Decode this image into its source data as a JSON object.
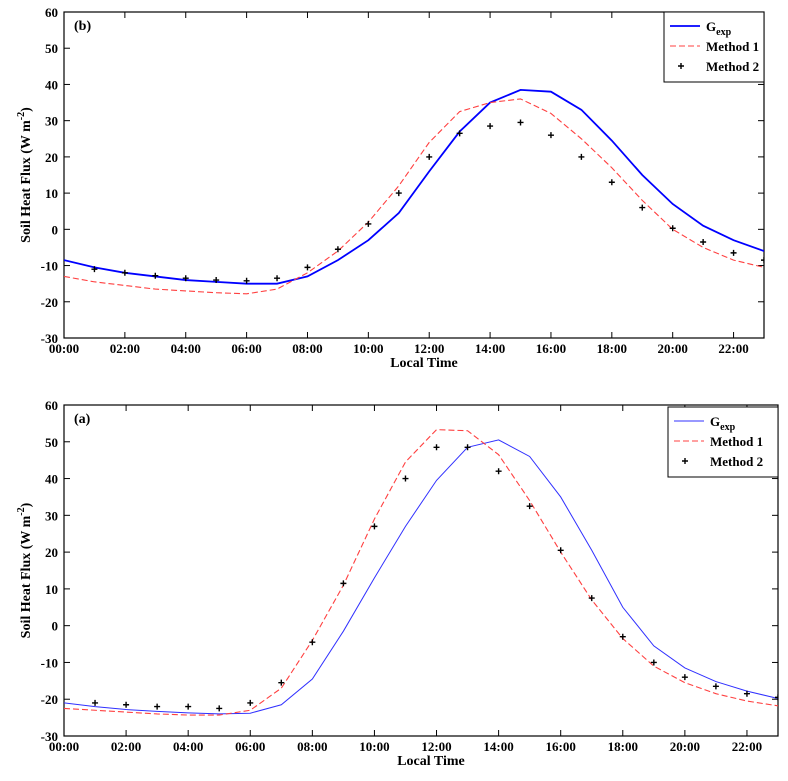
{
  "chart_data": [
    {
      "type": "line",
      "panel_label": "(b)",
      "xlabel": "Local Time",
      "ylabel": "Soil Heat Flux (W m",
      "ylabel_sup": "-2",
      "ylabel_close": ")",
      "xlim": [
        0,
        23
      ],
      "ylim": [
        -30,
        60
      ],
      "yticks": [
        -30,
        -20,
        -10,
        0,
        10,
        20,
        30,
        40,
        50,
        60
      ],
      "xticks": [
        0,
        2,
        4,
        6,
        8,
        10,
        12,
        14,
        16,
        18,
        20,
        22
      ],
      "xtick_labels": [
        "00:00",
        "02:00",
        "04:00",
        "06:00",
        "08:00",
        "10:00",
        "12:00",
        "14:00",
        "16:00",
        "18:00",
        "20:00",
        "22:00"
      ],
      "legend_position": "top-right",
      "series": [
        {
          "name": "G",
          "name_sub": "exp",
          "style": "solid-thick",
          "color": "#0000ff",
          "x": [
            0,
            1,
            2,
            3,
            4,
            5,
            6,
            7,
            8,
            9,
            10,
            11,
            12,
            13,
            14,
            15,
            16,
            17,
            18,
            19,
            20,
            21,
            22,
            23
          ],
          "values": [
            -8.5,
            -10.5,
            -12,
            -13,
            -14,
            -14.5,
            -15,
            -15,
            -13,
            -8.5,
            -3,
            4.5,
            16,
            27,
            35,
            38.5,
            38,
            33,
            24.5,
            15,
            7,
            1,
            -3,
            -6
          ]
        },
        {
          "name": "Method 1",
          "style": "dashed",
          "color": "#ff4040",
          "x": [
            0,
            1,
            2,
            3,
            4,
            5,
            6,
            7,
            8,
            9,
            10,
            11,
            12,
            13,
            14,
            15,
            16,
            17,
            18,
            19,
            20,
            21,
            22,
            23
          ],
          "values": [
            -13,
            -14.5,
            -15.5,
            -16.5,
            -17,
            -17.5,
            -17.8,
            -16.5,
            -12,
            -6,
            2,
            12,
            24,
            32.5,
            35,
            36,
            32,
            25,
            17,
            8,
            0,
            -5,
            -8.5,
            -10.5
          ]
        },
        {
          "name": "Method 2",
          "style": "markers",
          "color": "#000000",
          "x": [
            1,
            2,
            3,
            4,
            5,
            6,
            7,
            8,
            9,
            10,
            11,
            12,
            13,
            14,
            15,
            16,
            17,
            18,
            19,
            20,
            21,
            22,
            23
          ],
          "values": [
            -11,
            -12,
            -12.8,
            -13.5,
            -14,
            -14.2,
            -13.5,
            -10.5,
            -5.5,
            1.5,
            10,
            20,
            26.5,
            28.5,
            29.5,
            26,
            20,
            13,
            6,
            0.3,
            -3.5,
            -6.5,
            -8.5
          ]
        }
      ]
    },
    {
      "type": "line",
      "panel_label": "(a)",
      "xlabel": "Local Time",
      "ylabel": "Soil Heat Flux (W m",
      "ylabel_sup": "-2",
      "ylabel_close": ")",
      "xlim": [
        0,
        23
      ],
      "ylim": [
        -30,
        60
      ],
      "yticks": [
        -30,
        -20,
        -10,
        0,
        10,
        20,
        30,
        40,
        50,
        60
      ],
      "xticks": [
        0,
        2,
        4,
        6,
        8,
        10,
        12,
        14,
        16,
        18,
        20,
        22
      ],
      "xtick_labels": [
        "00:00",
        "02:00",
        "04:00",
        "06:00",
        "08:00",
        "10:00",
        "12:00",
        "14:00",
        "16:00",
        "18:00",
        "20:00",
        "22:00"
      ],
      "legend_position": "top-right",
      "series": [
        {
          "name": "G",
          "name_sub": "exp",
          "style": "solid-thin",
          "color": "#3030ff",
          "x": [
            0,
            1,
            2,
            3,
            4,
            5,
            6,
            7,
            8,
            9,
            10,
            11,
            12,
            13,
            14,
            15,
            16,
            17,
            18,
            19,
            20,
            21,
            22,
            23
          ],
          "values": [
            -21,
            -22,
            -22.8,
            -23.3,
            -23.7,
            -24,
            -23.8,
            -21.5,
            -14.5,
            -1.5,
            13,
            27,
            39.5,
            48.5,
            50.5,
            46,
            35,
            20.5,
            5,
            -5.5,
            -11.5,
            -15.2,
            -17.8,
            -19.8
          ]
        },
        {
          "name": "Method 1",
          "style": "dashed",
          "color": "#ff4040",
          "x": [
            0,
            1,
            2,
            3,
            4,
            5,
            6,
            7,
            8,
            9,
            10,
            11,
            12,
            13,
            14,
            15,
            16,
            17,
            18,
            19,
            20,
            21,
            22,
            23
          ],
          "values": [
            -22.5,
            -23,
            -23.5,
            -24,
            -24.3,
            -24.3,
            -23,
            -17,
            -4,
            11,
            29,
            44.5,
            53.3,
            53,
            46.5,
            34,
            20,
            7,
            -3.5,
            -11,
            -15.5,
            -18.5,
            -20.5,
            -21.8
          ]
        },
        {
          "name": "Method 2",
          "style": "markers",
          "color": "#000000",
          "x": [
            1,
            2,
            3,
            4,
            5,
            6,
            7,
            8,
            9,
            10,
            11,
            12,
            13,
            14,
            15,
            16,
            17,
            18,
            19,
            20,
            21,
            22,
            23
          ],
          "values": [
            -21,
            -21.5,
            -22,
            -22,
            -22.5,
            -21,
            -15.5,
            -4.5,
            11.5,
            27,
            40,
            48.5,
            48.5,
            42,
            32.5,
            20.5,
            7.5,
            -3,
            -10,
            -14,
            -16.5,
            -18.5,
            -19.5
          ]
        }
      ]
    }
  ]
}
